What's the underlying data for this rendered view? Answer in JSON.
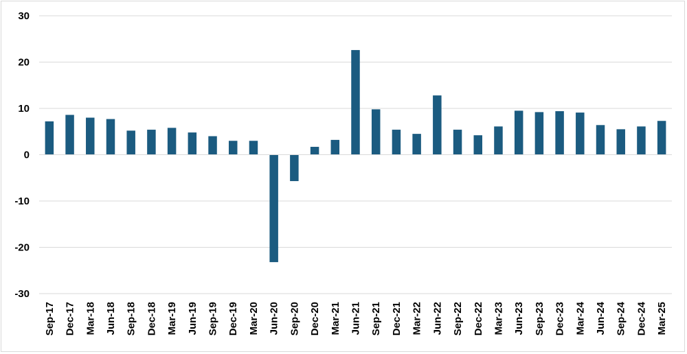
{
  "chart_data": {
    "type": "bar",
    "title": "",
    "xlabel": "",
    "ylabel": "",
    "ylim": [
      -30,
      30
    ],
    "yticks": [
      30,
      20,
      10,
      0,
      -10,
      -20,
      -30
    ],
    "grid": true,
    "legend": "none",
    "bar_color": "#1b5b80",
    "categories": [
      "Sep-17",
      "Dec-17",
      "Mar-18",
      "Jun-18",
      "Sep-18",
      "Dec-18",
      "Mar-19",
      "Jun-19",
      "Sep-19",
      "Dec-19",
      "Mar-20",
      "Jun-20",
      "Sep-20",
      "Dec-20",
      "Mar-21",
      "Jun-21",
      "Sep-21",
      "Dec-21",
      "Mar-22",
      "Jun-22",
      "Sep-22",
      "Dec-22",
      "Mar-23",
      "Jun-23",
      "Sep-23",
      "Dec-23",
      "Mar-24",
      "Jun-24",
      "Sep-24",
      "Dec-24",
      "Mar-25"
    ],
    "values": [
      7.2,
      8.6,
      8.0,
      7.7,
      5.2,
      5.4,
      5.8,
      4.8,
      4.0,
      3.0,
      3.0,
      -23.2,
      -5.7,
      1.7,
      3.2,
      22.6,
      9.8,
      5.4,
      4.5,
      12.8,
      5.4,
      4.2,
      6.1,
      9.5,
      9.2,
      9.4,
      9.1,
      6.4,
      5.5,
      6.1,
      7.3
    ]
  }
}
